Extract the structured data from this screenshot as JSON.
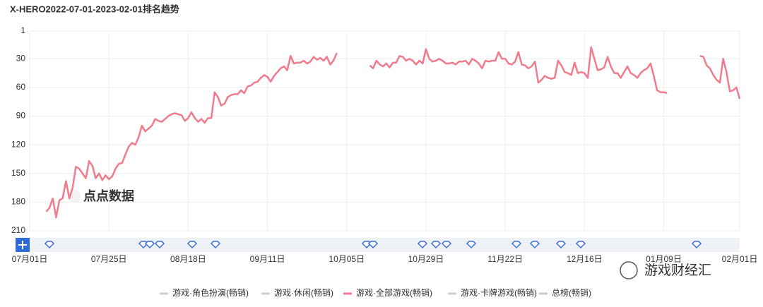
{
  "chart_data": {
    "type": "line",
    "title": "X-HERO2022-07-01-2023-02-01排名趋势",
    "watermark": "点点数据",
    "brand": "游戏财经汇",
    "inverted": true,
    "grid": true,
    "ylim": [
      1,
      210
    ],
    "yticks": [
      1,
      30,
      60,
      90,
      120,
      150,
      180,
      210
    ],
    "xlim": [
      0,
      215
    ],
    "xticks": [
      {
        "value": 0,
        "label": "07月01日"
      },
      {
        "value": 24,
        "label": "07月25日"
      },
      {
        "value": 48,
        "label": "08月18日"
      },
      {
        "value": 72,
        "label": "09月11日"
      },
      {
        "value": 96,
        "label": "10月05日"
      },
      {
        "value": 120,
        "label": "10月29日"
      },
      {
        "value": 144,
        "label": "11月22日"
      },
      {
        "value": 168,
        "label": "12月16日"
      },
      {
        "value": 192,
        "label": "01月09日"
      },
      {
        "value": 215,
        "label": "02月01日"
      }
    ],
    "legend": [
      {
        "name": "游戏·角色扮演(畅销)",
        "color": "#cccccc"
      },
      {
        "name": "游戏·休闲(畅销)",
        "color": "#cccccc"
      },
      {
        "name": "游戏·全部游戏(畅销)",
        "color": "#f07b8c"
      },
      {
        "name": "游戏·卡牌游戏(畅销)",
        "color": "#cccccc"
      },
      {
        "name": "总榜(畅销)",
        "color": "#cccccc"
      }
    ],
    "x": [
      5,
      6,
      7,
      8,
      9,
      10,
      11,
      12,
      13,
      14,
      15,
      16,
      17,
      18,
      19,
      20,
      21,
      22,
      23,
      24,
      25,
      26,
      27,
      28,
      29,
      30,
      31,
      32,
      33,
      34,
      35,
      36,
      37,
      38,
      39,
      40,
      41,
      42,
      43,
      44,
      45,
      46,
      47,
      48,
      49,
      50,
      51,
      52,
      53,
      54,
      55,
      56,
      57,
      58,
      59,
      60,
      61,
      62,
      63,
      64,
      65,
      66,
      67,
      68,
      69,
      70,
      71,
      72,
      73,
      74,
      75,
      76,
      77,
      78,
      79,
      80,
      81,
      82,
      83,
      84,
      85,
      86,
      87,
      88,
      89,
      90,
      91,
      92,
      93,
      94,
      95,
      96,
      97,
      98,
      99,
      100,
      101,
      102,
      103,
      104,
      105,
      106,
      107,
      108,
      109,
      110,
      111,
      112,
      113,
      114,
      115,
      116,
      117,
      118,
      119,
      120,
      121,
      122,
      123,
      124,
      125,
      126,
      127,
      128,
      129,
      130,
      131,
      132,
      133,
      134,
      135,
      136,
      137,
      138,
      139,
      140,
      141,
      142,
      143,
      144,
      145,
      146,
      147,
      148,
      149,
      150,
      151,
      152,
      153,
      154,
      155,
      156,
      157,
      158,
      159,
      160,
      161,
      162,
      163,
      164,
      165,
      166,
      167,
      168,
      169,
      170,
      171,
      172,
      173,
      174,
      175,
      176,
      177,
      178,
      179,
      180,
      181,
      182,
      183,
      184,
      185,
      186,
      187,
      188,
      189,
      190,
      191,
      192,
      193,
      194,
      195,
      196,
      197,
      198,
      199,
      200,
      201,
      202,
      203,
      204,
      205,
      206,
      207,
      208,
      209,
      210,
      211,
      212,
      213,
      214,
      215
    ],
    "series": [
      {
        "name": "游戏·全部游戏(畅销)",
        "color": "#f07b8c",
        "values": [
          190,
          186,
          176,
          196,
          178,
          176,
          158,
          176,
          165,
          143,
          145,
          150,
          155,
          137,
          142,
          155,
          150,
          157,
          152,
          156,
          153,
          145,
          140,
          139,
          130,
          122,
          118,
          120,
          112,
          100,
          106,
          103,
          100,
          93,
          95,
          96,
          93,
          90,
          88,
          87,
          88,
          89,
          95,
          92,
          86,
          92,
          96,
          93,
          97,
          92,
          92,
          65,
          70,
          79,
          77,
          70,
          68,
          67,
          67,
          63,
          66,
          59,
          58,
          55,
          54,
          50,
          47,
          49,
          54,
          48,
          44,
          40,
          38,
          42,
          27,
          35,
          34,
          34,
          32,
          35,
          33,
          28,
          31,
          29,
          32,
          28,
          36,
          32,
          24,
          null,
          null,
          null,
          null,
          null,
          null,
          null,
          null,
          null,
          37,
          40,
          32,
          36,
          38,
          35,
          39,
          34,
          34,
          27,
          28,
          32,
          30,
          32,
          36,
          32,
          35,
          20,
          30,
          33,
          32,
          30,
          32,
          35,
          35,
          34,
          36,
          33,
          33,
          32,
          36,
          30,
          32,
          35,
          40,
          32,
          33,
          32,
          32,
          23,
          30,
          30,
          35,
          36,
          33,
          23,
          36,
          37,
          40,
          38,
          33,
          55,
          52,
          48,
          50,
          51,
          50,
          32,
          37,
          44,
          45,
          47,
          34,
          45,
          44,
          45,
          50,
          18,
          30,
          42,
          41,
          39,
          28,
          38,
          45,
          45,
          50,
          44,
          38,
          45,
          47,
          50,
          45,
          42,
          40,
          35,
          48,
          63,
          65,
          65,
          66,
          null,
          null,
          null,
          null,
          null,
          null,
          null,
          null,
          null,
          27,
          28,
          37,
          40,
          47,
          52,
          55,
          30,
          44,
          64,
          63,
          60,
          72
        ]
      }
    ]
  }
}
